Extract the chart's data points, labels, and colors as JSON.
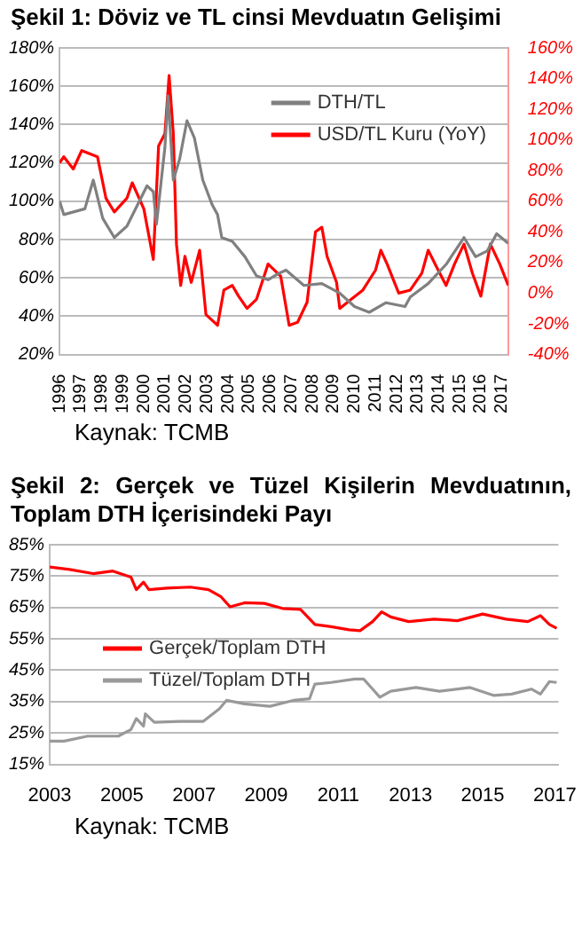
{
  "chart_data": [
    {
      "type": "line",
      "title": "Şekil 1: Döviz ve TL cinsi Mevduatın Gelişimi",
      "annotations": [
        "Kaynak: TCMB"
      ],
      "legend": "top right",
      "grid": "y",
      "marker": "none",
      "line_style": "solid",
      "xlim": [
        1996,
        2017.3
      ],
      "xticks": [
        1996,
        1997,
        1998,
        1999,
        2000,
        2001,
        2002,
        2003,
        2004,
        2005,
        2006,
        2007,
        2008,
        2009,
        2010,
        2011,
        2012,
        2013,
        2014,
        2015,
        2016,
        2017
      ],
      "ylim": [
        20,
        180
      ],
      "yticks": [
        {
          "value": 20,
          "label": "20%"
        },
        {
          "value": 40,
          "label": "40%"
        },
        {
          "value": 60,
          "label": "60%"
        },
        {
          "value": 80,
          "label": "80%"
        },
        {
          "value": 100,
          "label": "100%"
        },
        {
          "value": 120,
          "label": "120%"
        },
        {
          "value": 140,
          "label": "140%"
        },
        {
          "value": 160,
          "label": "160%"
        },
        {
          "value": 180,
          "label": "180%"
        }
      ],
      "y2lim": [
        -40,
        160
      ],
      "y2ticks": [
        {
          "value": -40,
          "label": "-40%"
        },
        {
          "value": -20,
          "label": "-20%"
        },
        {
          "value": 0,
          "label": "0%"
        },
        {
          "value": 20,
          "label": "20%"
        },
        {
          "value": 40,
          "label": "40%"
        },
        {
          "value": 60,
          "label": "60%"
        },
        {
          "value": 80,
          "label": "80%"
        },
        {
          "value": 100,
          "label": "100%"
        },
        {
          "value": 120,
          "label": "120%"
        },
        {
          "value": 140,
          "label": "140%"
        },
        {
          "value": 160,
          "label": "160%"
        }
      ],
      "series": [
        {
          "name": "DTH/TL",
          "color": "#808080",
          "x": [
            1996.0,
            1996.2,
            1997.2,
            1997.6,
            1998.05,
            1998.6,
            1999.2,
            1999.7,
            2000.15,
            2000.45,
            2000.6,
            2001.0,
            2001.15,
            2001.4,
            2001.7,
            2002.05,
            2002.4,
            2002.8,
            2003.25,
            2003.5,
            2003.7,
            2004.2,
            2004.8,
            2005.35,
            2005.9,
            2006.35,
            2006.75,
            2007.6,
            2008.45,
            2009.3,
            2010.0,
            2010.7,
            2011.5,
            2012.4,
            2012.65,
            2013.5,
            2014.35,
            2015.2,
            2015.75,
            2016.3,
            2016.75,
            2017.3
          ],
          "values": [
            100,
            93,
            96,
            111,
            91,
            81,
            87,
            98,
            108,
            105,
            88,
            128,
            155,
            111,
            122,
            142,
            133,
            111,
            98,
            93,
            81,
            79,
            71,
            61,
            59,
            62,
            64,
            56,
            57,
            52,
            45,
            42,
            47,
            45,
            50,
            57,
            67,
            81,
            71,
            74,
            83,
            78
          ]
        },
        {
          "name": "USD/TL Kuru (YoY)",
          "color": "#ff0000",
          "axis": "y2",
          "x": [
            1996.0,
            1996.2,
            1996.65,
            1997.05,
            1997.8,
            1998.2,
            1998.6,
            1999.2,
            1999.45,
            2000.0,
            2000.45,
            2000.7,
            2001.0,
            2001.2,
            2001.4,
            2001.55,
            2001.75,
            2001.95,
            2002.25,
            2002.65,
            2002.95,
            2003.5,
            2003.8,
            2004.2,
            2004.5,
            2004.9,
            2005.35,
            2005.9,
            2006.5,
            2006.9,
            2007.3,
            2007.75,
            2008.15,
            2008.45,
            2008.7,
            2009.15,
            2009.3,
            2009.85,
            2010.4,
            2011.0,
            2011.25,
            2011.55,
            2012.1,
            2012.65,
            2013.2,
            2013.5,
            2013.9,
            2014.35,
            2014.75,
            2015.2,
            2015.6,
            2016.0,
            2016.45,
            2016.9,
            2017.3
          ],
          "values": [
            85,
            89,
            81,
            93,
            89,
            62,
            53,
            62,
            72,
            55,
            22,
            96,
            104,
            142,
            104,
            32,
            5,
            24,
            7,
            28,
            -14,
            -21,
            2,
            5,
            -2,
            -10,
            -4,
            19,
            11,
            -21,
            -19,
            -6,
            40,
            43,
            24,
            7,
            -10,
            -4,
            2,
            15,
            28,
            19,
            0,
            2,
            13,
            28,
            17,
            5,
            19,
            32,
            13,
            -2,
            32,
            19,
            5
          ]
        }
      ]
    },
    {
      "type": "line",
      "title": "Şekil 2: Gerçek ve Tüzel Kişilerin Mevduatının, Toplam DTH İçerisindeki Payı",
      "annotations": [
        "Kaynak: TCMB"
      ],
      "legend": "left",
      "grid": "y",
      "marker": "none",
      "line_style": "solid",
      "xlim": [
        2003,
        2017.1
      ],
      "xticks": [
        2003,
        2005,
        2007,
        2009,
        2011,
        2013,
        2015,
        2017
      ],
      "ylim": [
        15,
        85
      ],
      "yticks": [
        {
          "value": 15,
          "label": "15%"
        },
        {
          "value": 25,
          "label": "25%"
        },
        {
          "value": 35,
          "label": "35%"
        },
        {
          "value": 45,
          "label": "45%"
        },
        {
          "value": 55,
          "label": "55%"
        },
        {
          "value": 65,
          "label": "65%"
        },
        {
          "value": 75,
          "label": "75%"
        },
        {
          "value": 85,
          "label": "85%"
        }
      ],
      "series": [
        {
          "name": "Gerçek/Toplam DTH",
          "color": "#ff0000",
          "x": [
            2003,
            2003.55,
            2004.2,
            2004.75,
            2005.25,
            2005.4,
            2005.6,
            2005.75,
            2006.25,
            2006.9,
            2007.4,
            2007.75,
            2008.0,
            2008.4,
            2008.95,
            2009.45,
            2009.95,
            2010.35,
            2010.8,
            2011.3,
            2011.6,
            2011.95,
            2012.2,
            2012.45,
            2012.95,
            2013.65,
            2014.3,
            2015.0,
            2015.65,
            2016.25,
            2016.6,
            2016.85,
            2017.05
          ],
          "values": [
            77.9,
            77.1,
            75.8,
            76.6,
            74.7,
            70.7,
            73.1,
            70.7,
            71.2,
            71.5,
            70.7,
            68.4,
            65.2,
            66.5,
            66.3,
            64.7,
            64.4,
            59.6,
            58.9,
            57.9,
            57.6,
            60.5,
            63.6,
            62.0,
            60.5,
            61.3,
            60.8,
            62.9,
            61.3,
            60.5,
            62.4,
            59.6,
            58.4
          ]
        },
        {
          "name": "Tüzel/Toplam DTH",
          "color": "#999999",
          "x": [
            2003,
            2003.4,
            2004.05,
            2004.9,
            2005.25,
            2005.4,
            2005.6,
            2005.65,
            2005.9,
            2006.6,
            2007.25,
            2007.7,
            2007.9,
            2008.4,
            2009.1,
            2009.75,
            2010.2,
            2010.35,
            2010.8,
            2011.45,
            2011.7,
            2011.95,
            2012.15,
            2012.45,
            2013.15,
            2013.8,
            2014.65,
            2015.3,
            2015.8,
            2016.35,
            2016.6,
            2016.85,
            2017.05
          ],
          "values": [
            22.4,
            22.4,
            24.0,
            24.0,
            26.1,
            29.6,
            27.2,
            31.1,
            28.4,
            28.7,
            28.7,
            32.7,
            35.4,
            34.3,
            33.5,
            35.4,
            35.9,
            40.6,
            41.1,
            42.2,
            42.2,
            39.0,
            36.4,
            38.3,
            39.5,
            38.3,
            39.5,
            37.0,
            37.4,
            39.0,
            37.4,
            41.4,
            41.1
          ]
        }
      ]
    }
  ]
}
